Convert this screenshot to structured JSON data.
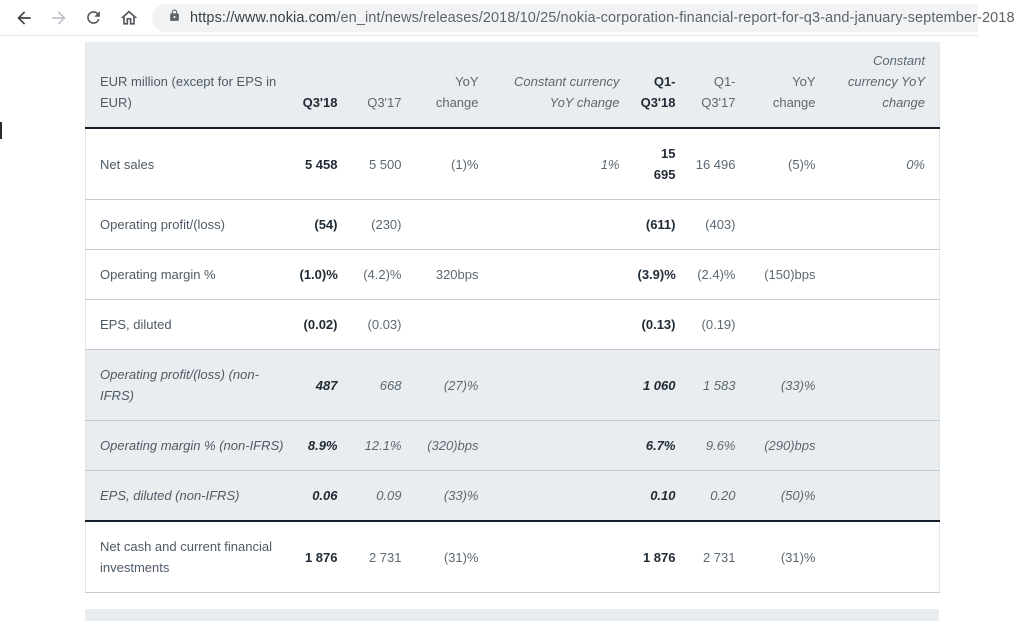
{
  "browser": {
    "url_domain": "https://www.nokia.com",
    "url_path": "/en_int/news/releases/2018/10/25/nokia-corporation-financial-report-for-q3-and-january-september-2018"
  },
  "table": {
    "columns": [
      {
        "label": "EUR million (except for EPS in EUR)",
        "style": "plain"
      },
      {
        "label": "Q3'18",
        "style": "cur"
      },
      {
        "label": "Q3'17",
        "style": "plain"
      },
      {
        "label": "YoY change",
        "style": "plain"
      },
      {
        "label": "Constant currency YoY change",
        "style": "ital"
      },
      {
        "label": "Q1-Q3'18",
        "style": "cur"
      },
      {
        "label": "Q1-Q3'17",
        "style": "plain"
      },
      {
        "label": "YoY change",
        "style": "plain"
      },
      {
        "label": "Constant currency YoY change",
        "style": "ital"
      }
    ],
    "rows": [
      {
        "section": "ifrs",
        "cells": [
          "Net sales",
          "5 458",
          "5 500",
          "(1)%",
          "1%",
          "15 695",
          "16 496",
          "(5)%",
          "0%"
        ]
      },
      {
        "section": "ifrs",
        "cells": [
          "Operating profit/(loss)",
          "(54)",
          "(230)",
          "",
          "",
          "(611)",
          "(403)",
          "",
          ""
        ]
      },
      {
        "section": "ifrs",
        "cells": [
          "Operating margin %",
          "(1.0)%",
          "(4.2)%",
          "320bps",
          "",
          "(3.9)%",
          "(2.4)%",
          "(150)bps",
          ""
        ]
      },
      {
        "section": "ifrs",
        "cells": [
          "EPS, diluted",
          "(0.02)",
          "(0.03)",
          "",
          "",
          "(0.13)",
          "(0.19)",
          "",
          ""
        ]
      },
      {
        "section": "nonifrs",
        "cells": [
          "Operating profit/(loss) (non-IFRS)",
          "487",
          "668",
          "(27)%",
          "",
          "1 060",
          "1 583",
          "(33)%",
          ""
        ]
      },
      {
        "section": "nonifrs",
        "cells": [
          "Operating margin % (non-IFRS)",
          "8.9%",
          "12.1%",
          "(320)bps",
          "",
          "6.7%",
          "9.6%",
          "(290)bps",
          ""
        ]
      },
      {
        "section": "nonifrs",
        "dark_border_bottom": true,
        "cells": [
          "EPS, diluted (non-IFRS)",
          "0.06",
          "0.09",
          "(33)%",
          "",
          "0.10",
          "0.20",
          "(50)%",
          ""
        ]
      },
      {
        "section": "ifrs",
        "cells": [
          "Net cash and current financial investments",
          "1 876",
          "2 731",
          "(31)%",
          "",
          "1 876",
          "2 731",
          "(31)%",
          ""
        ]
      }
    ]
  },
  "icons": [
    "back-arrow",
    "forward-arrow",
    "reload",
    "home",
    "lock"
  ],
  "colors": {
    "header_bg": "#e9edf0",
    "dark_border": "#141f2b",
    "row_border": "#c3ccd4",
    "text_primary": "#212b36",
    "text_secondary": "#5c6872",
    "label": "#4e5a66",
    "omnibox_bg": "#f1f3f4",
    "icon_gray": "#54585c",
    "icon_disabled": "#bdc1c5",
    "url_domain": "#3c4043",
    "url_path": "#5f6368"
  }
}
